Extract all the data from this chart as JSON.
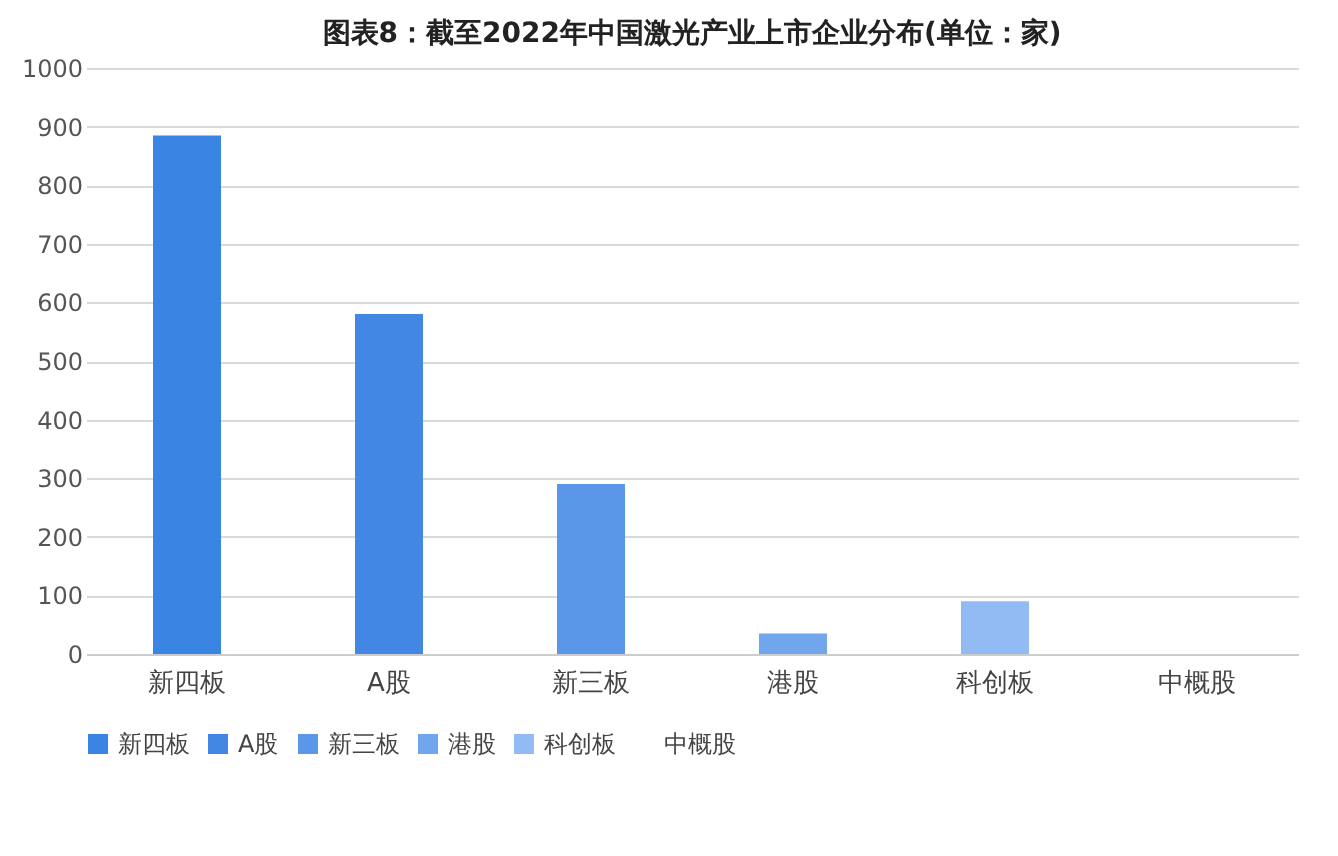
{
  "chart_data": {
    "type": "bar",
    "title": "图表8：截至2022年中国激光产业上市企业分布(单位：家)",
    "categories": [
      "新四板",
      "A股",
      "新三板",
      "港股",
      "科创板",
      "中概股"
    ],
    "series": [
      {
        "name": "新四板",
        "color": "#3a84e4",
        "values": [
          885,
          null,
          null,
          null,
          null,
          null
        ]
      },
      {
        "name": "A股",
        "color": "#4287e4",
        "values": [
          null,
          580,
          null,
          null,
          null,
          null
        ]
      },
      {
        "name": "新三板",
        "color": "#5b97e8",
        "values": [
          null,
          null,
          290,
          null,
          null,
          null
        ]
      },
      {
        "name": "港股",
        "color": "#6fa6ec",
        "values": [
          null,
          null,
          null,
          35,
          null,
          null
        ]
      },
      {
        "name": "科创板",
        "color": "#92bbf3",
        "values": [
          null,
          null,
          null,
          null,
          90,
          null
        ]
      },
      {
        "name": "中概股",
        "values": [
          null,
          null,
          null,
          null,
          null,
          0
        ]
      }
    ],
    "ylim": [
      0,
      1000
    ],
    "yticks": [
      0,
      100,
      200,
      300,
      400,
      500,
      600,
      700,
      800,
      900,
      1000
    ],
    "grid": "y",
    "legend": "bottom"
  }
}
